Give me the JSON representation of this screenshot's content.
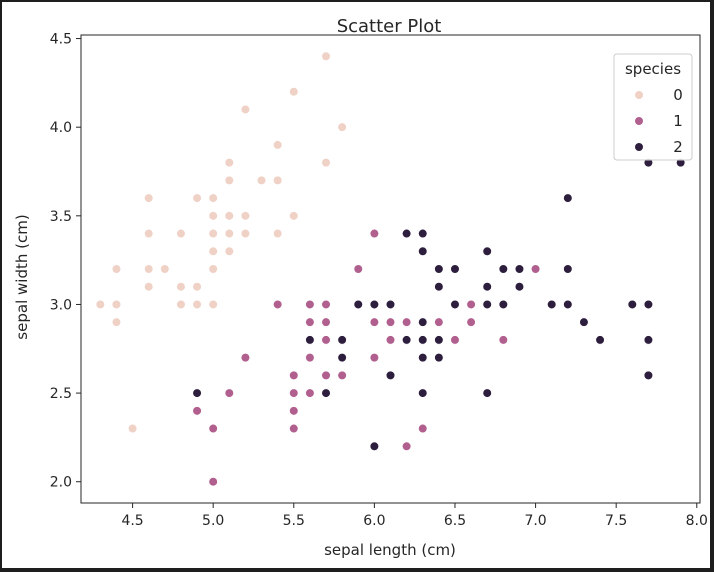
{
  "chart_data": {
    "type": "scatter",
    "title": "Scatter Plot",
    "xlabel": "sepal length (cm)",
    "ylabel": "sepal width (cm)",
    "xlim": [
      4.18,
      8.02
    ],
    "ylim": [
      1.88,
      4.52
    ],
    "xticks": [
      4.5,
      5.0,
      5.5,
      6.0,
      6.5,
      7.0,
      7.5,
      8.0
    ],
    "xtick_labels": [
      "4.5",
      "5.0",
      "5.5",
      "6.0",
      "6.5",
      "7.0",
      "7.5",
      "8.0"
    ],
    "yticks": [
      2.0,
      2.5,
      3.0,
      3.5,
      4.0,
      4.5
    ],
    "ytick_labels": [
      "2.0",
      "2.5",
      "3.0",
      "3.5",
      "4.0",
      "4.5"
    ],
    "grid": false,
    "legend": {
      "title": "species",
      "placement": "top-right"
    },
    "series": [
      {
        "name": "0",
        "color": "#efd1c6",
        "points": [
          [
            4.3,
            3.0
          ],
          [
            4.4,
            2.9
          ],
          [
            4.4,
            3.0
          ],
          [
            4.4,
            3.2
          ],
          [
            4.5,
            2.3
          ],
          [
            4.6,
            3.1
          ],
          [
            4.6,
            3.2
          ],
          [
            4.6,
            3.4
          ],
          [
            4.6,
            3.6
          ],
          [
            4.7,
            3.2
          ],
          [
            4.8,
            3.0
          ],
          [
            4.8,
            3.1
          ],
          [
            4.8,
            3.4
          ],
          [
            4.9,
            3.0
          ],
          [
            4.9,
            3.1
          ],
          [
            4.9,
            3.6
          ],
          [
            5.0,
            3.0
          ],
          [
            5.0,
            3.2
          ],
          [
            5.0,
            3.3
          ],
          [
            5.0,
            3.4
          ],
          [
            5.0,
            3.5
          ],
          [
            5.0,
            3.6
          ],
          [
            5.1,
            3.3
          ],
          [
            5.1,
            3.4
          ],
          [
            5.1,
            3.5
          ],
          [
            5.1,
            3.7
          ],
          [
            5.1,
            3.8
          ],
          [
            5.2,
            3.4
          ],
          [
            5.2,
            3.5
          ],
          [
            5.2,
            4.1
          ],
          [
            5.3,
            3.7
          ],
          [
            5.4,
            3.4
          ],
          [
            5.4,
            3.7
          ],
          [
            5.4,
            3.9
          ],
          [
            5.5,
            3.5
          ],
          [
            5.5,
            4.2
          ],
          [
            5.7,
            3.8
          ],
          [
            5.7,
            4.4
          ],
          [
            5.8,
            4.0
          ]
        ]
      },
      {
        "name": "1",
        "color": "#b15f8e",
        "points": [
          [
            4.9,
            2.4
          ],
          [
            5.0,
            2.0
          ],
          [
            5.0,
            2.3
          ],
          [
            5.1,
            2.5
          ],
          [
            5.2,
            2.7
          ],
          [
            5.4,
            3.0
          ],
          [
            5.5,
            2.3
          ],
          [
            5.5,
            2.4
          ],
          [
            5.5,
            2.5
          ],
          [
            5.5,
            2.6
          ],
          [
            5.6,
            2.5
          ],
          [
            5.6,
            2.7
          ],
          [
            5.6,
            2.9
          ],
          [
            5.6,
            3.0
          ],
          [
            5.7,
            2.6
          ],
          [
            5.7,
            2.8
          ],
          [
            5.7,
            2.9
          ],
          [
            5.7,
            3.0
          ],
          [
            5.8,
            2.6
          ],
          [
            5.8,
            2.7
          ],
          [
            5.9,
            3.0
          ],
          [
            5.9,
            3.2
          ],
          [
            6.0,
            2.7
          ],
          [
            6.0,
            2.9
          ],
          [
            6.0,
            3.4
          ],
          [
            6.1,
            2.8
          ],
          [
            6.1,
            2.9
          ],
          [
            6.1,
            3.0
          ],
          [
            6.2,
            2.2
          ],
          [
            6.2,
            2.9
          ],
          [
            6.3,
            2.3
          ],
          [
            6.3,
            2.5
          ],
          [
            6.4,
            2.9
          ],
          [
            6.4,
            3.2
          ],
          [
            6.5,
            2.8
          ],
          [
            6.6,
            2.9
          ],
          [
            6.6,
            3.0
          ],
          [
            6.7,
            3.0
          ],
          [
            6.7,
            3.1
          ],
          [
            6.8,
            2.8
          ],
          [
            7.0,
            3.2
          ]
        ]
      },
      {
        "name": "2",
        "color": "#2d1e3e",
        "points": [
          [
            4.9,
            2.5
          ],
          [
            5.6,
            2.8
          ],
          [
            5.7,
            2.5
          ],
          [
            5.8,
            2.7
          ],
          [
            5.8,
            2.8
          ],
          [
            5.9,
            3.0
          ],
          [
            6.0,
            2.2
          ],
          [
            6.0,
            3.0
          ],
          [
            6.1,
            2.6
          ],
          [
            6.1,
            3.0
          ],
          [
            6.2,
            2.8
          ],
          [
            6.2,
            3.4
          ],
          [
            6.3,
            2.5
          ],
          [
            6.3,
            2.7
          ],
          [
            6.3,
            2.8
          ],
          [
            6.3,
            2.9
          ],
          [
            6.3,
            3.3
          ],
          [
            6.3,
            3.4
          ],
          [
            6.4,
            2.7
          ],
          [
            6.4,
            2.8
          ],
          [
            6.4,
            3.1
          ],
          [
            6.4,
            3.2
          ],
          [
            6.5,
            3.0
          ],
          [
            6.5,
            3.2
          ],
          [
            6.7,
            2.5
          ],
          [
            6.7,
            3.0
          ],
          [
            6.7,
            3.1
          ],
          [
            6.7,
            3.3
          ],
          [
            6.8,
            3.0
          ],
          [
            6.8,
            3.2
          ],
          [
            6.9,
            3.1
          ],
          [
            6.9,
            3.2
          ],
          [
            7.1,
            3.0
          ],
          [
            7.2,
            3.0
          ],
          [
            7.2,
            3.2
          ],
          [
            7.2,
            3.6
          ],
          [
            7.3,
            2.9
          ],
          [
            7.4,
            2.8
          ],
          [
            7.6,
            3.0
          ],
          [
            7.7,
            2.6
          ],
          [
            7.7,
            2.8
          ],
          [
            7.7,
            3.0
          ],
          [
            7.7,
            3.8
          ],
          [
            7.9,
            3.8
          ]
        ]
      }
    ]
  }
}
